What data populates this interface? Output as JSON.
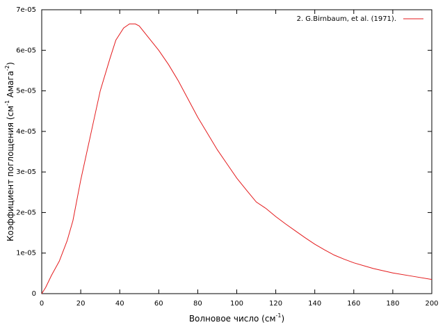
{
  "chart_data": {
    "type": "line",
    "xlabel": [
      "Волновое число (см",
      "-1",
      ")"
    ],
    "ylabel": [
      "Коэффициент поглощения (см",
      "-1",
      " Амага",
      "-2",
      ")"
    ],
    "x": [
      0,
      2,
      5,
      9,
      13,
      16,
      20,
      25,
      30,
      35,
      38,
      42,
      45,
      48,
      50,
      55,
      60,
      65,
      70,
      75,
      80,
      85,
      90,
      95,
      100,
      105,
      110,
      115,
      120,
      125,
      130,
      135,
      140,
      145,
      150,
      155,
      160,
      170,
      180,
      190,
      200
    ],
    "series": [
      {
        "name": "2.  G.Birnbaum, et al. (1971).",
        "color": "#e41a1c",
        "values": [
          0,
          1.5e-06,
          4.5e-06,
          8e-06,
          1.3e-05,
          1.8e-05,
          2.8e-05,
          3.9e-05,
          5e-05,
          5.8e-05,
          6.25e-05,
          6.55e-05,
          6.65e-05,
          6.65e-05,
          6.6e-05,
          6.3e-05,
          6e-05,
          5.65e-05,
          5.25e-05,
          4.8e-05,
          4.35e-05,
          3.95e-05,
          3.55e-05,
          3.2e-05,
          2.85e-05,
          2.55e-05,
          2.26e-05,
          2.1e-05,
          1.9e-05,
          1.72e-05,
          1.55e-05,
          1.38e-05,
          1.22e-05,
          1.08e-05,
          9.5e-06,
          8.5e-06,
          7.6e-06,
          6.2e-06,
          5.1e-06,
          4.3e-06,
          3.5e-06
        ]
      }
    ],
    "xlim": [
      0,
      200
    ],
    "xticks": [
      0,
      20,
      40,
      60,
      80,
      100,
      120,
      140,
      160,
      180,
      200
    ],
    "ylim": [
      0,
      7e-05
    ],
    "yticks": [
      0,
      {
        "value": 1e-05,
        "label": "1e-05"
      },
      {
        "value": 2e-05,
        "label": "2e-05"
      },
      {
        "value": 3e-05,
        "label": "3e-05"
      },
      {
        "value": 4e-05,
        "label": "4e-05"
      },
      {
        "value": 5e-05,
        "label": "5e-05"
      },
      {
        "value": 6e-05,
        "label": "6e-05"
      },
      {
        "value": 7e-05,
        "label": "7e-05"
      }
    ],
    "legend": "upper right",
    "grid": false
  }
}
